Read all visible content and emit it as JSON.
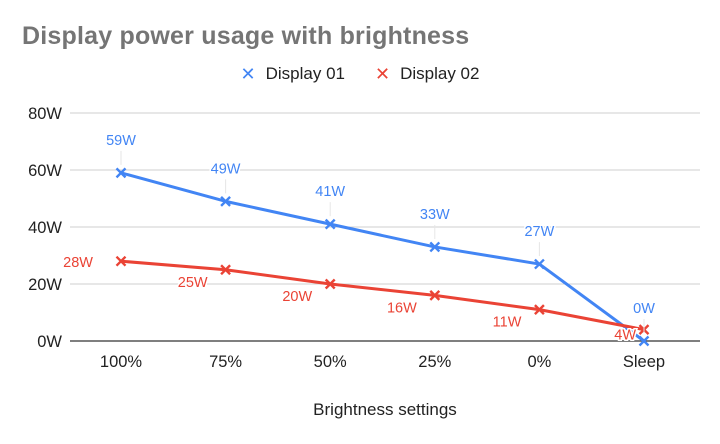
{
  "chart_data": {
    "type": "line",
    "title": "Display power usage with brightness",
    "xlabel": "Brightness settings",
    "ylabel": "",
    "categories": [
      "100%",
      "75%",
      "50%",
      "25%",
      "0%",
      "Sleep"
    ],
    "ylim": [
      0,
      80
    ],
    "yticks": [
      "0W",
      "20W",
      "40W",
      "60W",
      "80W"
    ],
    "grid": true,
    "legend_position": "top",
    "series": [
      {
        "name": "Display 01",
        "color": "#4285f4",
        "values": [
          59,
          49,
          41,
          33,
          27,
          0
        ],
        "labels": [
          "59W",
          "49W",
          "41W",
          "33W",
          "27W",
          "0W"
        ]
      },
      {
        "name": "Display 02",
        "color": "#ea4335",
        "values": [
          28,
          25,
          20,
          16,
          11,
          4
        ],
        "labels": [
          "28W",
          "25W",
          "20W",
          "16W",
          "11W",
          "4W"
        ]
      }
    ]
  }
}
